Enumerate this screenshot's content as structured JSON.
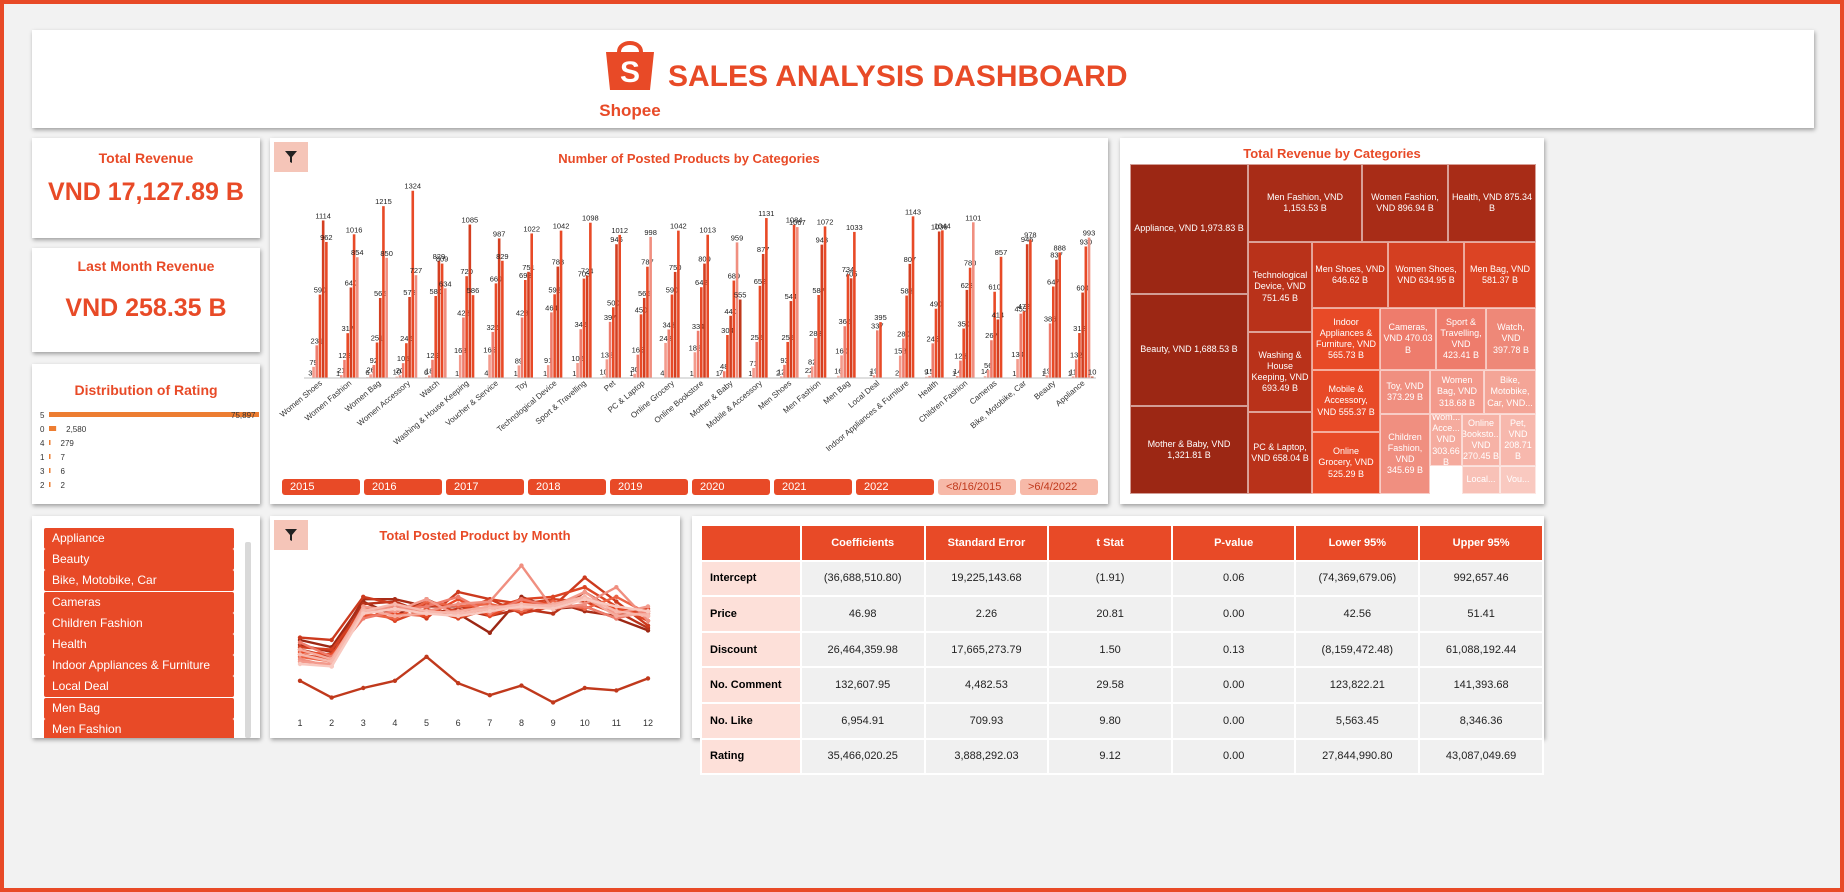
{
  "header": {
    "logo_text": "Shopee",
    "title": "SALES ANALYSIS DASHBOARD"
  },
  "kpis": {
    "total_revenue": {
      "label": "Total Revenue",
      "value": "VND 17,127.89 B"
    },
    "last_month_revenue": {
      "label": "Last Month Revenue",
      "value": "VND 258.35 B"
    }
  },
  "rating": {
    "title": "Distribution of Rating",
    "rows": [
      {
        "label": "5",
        "value": 75897,
        "display": "75,897"
      },
      {
        "label": "0",
        "value": 2580,
        "display": "2,580"
      },
      {
        "label": "4",
        "value": 279,
        "display": "279"
      },
      {
        "label": "1",
        "value": 7,
        "display": "7"
      },
      {
        "label": "3",
        "value": 6,
        "display": "6"
      },
      {
        "label": "2",
        "value": 2,
        "display": "2"
      }
    ]
  },
  "posted_chart": {
    "title": "Number of Posted Products by Categories",
    "year_buttons": [
      "2015",
      "2016",
      "2017",
      "2018",
      "2019",
      "2020",
      "2021",
      "2022"
    ],
    "date_buttons": [
      "<8/16/2015",
      ">6/4/2022"
    ],
    "chart_data": {
      "type": "bar",
      "categories": [
        "Women Shoes",
        "Women Fashion",
        "Women Bag",
        "Women Accessory",
        "Watch",
        "Washing & House Keeping",
        "Voucher & Service",
        "Toy",
        "Technological Device",
        "Sport & Travelling",
        "Pet",
        "PC & Laptop",
        "Online Grocery",
        "Online Bookstore",
        "Mother & Baby",
        "Mobile & Accessory",
        "Men Shoes",
        "Men Fashion",
        "Men Bag",
        "Local Deal",
        "Indoor Appliances & Furniture",
        "Health",
        "Children Fashion",
        "Cameras",
        "Bike, Motobike, Car",
        "Beauty",
        "Appliance"
      ],
      "values_per_category": [
        [
          3,
          79,
          231,
          590,
          1114,
          962
        ],
        [
          1,
          21,
          128,
          317,
          640,
          1016,
          854
        ],
        [
          6,
          26,
          92,
          251,
          566,
          1215,
          850
        ],
        [
          10,
          20,
          105,
          246,
          573,
          1324,
          727
        ],
        [
          6,
          18,
          129,
          580,
          829,
          809,
          634
        ],
        [
          1,
          163,
          428,
          720,
          1085,
          586
        ],
        [
          4,
          165,
          326,
          669,
          987,
          829
        ],
        [
          1,
          89,
          428,
          693,
          751,
          1022
        ],
        [
          1,
          91,
          464,
          592,
          788,
          1042
        ],
        [
          1,
          106,
          345,
          703,
          724,
          1098
        ],
        [
          10,
          132,
          397,
          500,
          946,
          1012
        ],
        [
          1,
          30,
          165,
          450,
          566,
          787,
          998
        ],
        [
          4,
          248,
          343,
          590,
          750,
          1042
        ],
        [
          1,
          182,
          334,
          642,
          809,
          1013
        ],
        [
          1,
          7,
          48,
          304,
          440,
          689,
          959,
          555
        ],
        [
          1,
          71,
          255,
          652,
          877,
          1131
        ],
        [
          2,
          12,
          93,
          255,
          544,
          1084,
          1067
        ],
        [
          22,
          82,
          283,
          587,
          943,
          1072
        ],
        [
          16,
          160,
          366,
          734,
          705,
          1033
        ],
        [
          1,
          19,
          337,
          395
        ],
        [
          2,
          158,
          280,
          583,
          807,
          1143
        ],
        [
          9,
          15,
          245,
          490,
          1036,
          1044
        ],
        [
          1,
          14,
          123,
          350,
          623,
          780,
          1101
        ],
        [
          14,
          56,
          267,
          610,
          414,
          857
        ],
        [
          1,
          134,
          455,
          472,
          946,
          978
        ],
        [
          1,
          19,
          386,
          647,
          837,
          888
        ],
        [
          1,
          11,
          132,
          318,
          604,
          930,
          993,
          10
        ]
      ],
      "ylim": [
        0,
        1400
      ]
    }
  },
  "treemap": {
    "title": "Total Revenue by Categories",
    "chart_data": {
      "type": "treemap",
      "items": [
        {
          "label": "Appliance, VND 1,973.83 B",
          "value": 1973.83,
          "color": "#9c2714"
        },
        {
          "label": "Beauty, VND 1,688.53 B",
          "value": 1688.53,
          "color": "#9c2714"
        },
        {
          "label": "Mother & Baby, VND 1,321.81 B",
          "value": 1321.81,
          "color": "#9c2714"
        },
        {
          "label": "Men Fashion, VND 1,153.53 B",
          "value": 1153.53,
          "color": "#a82c17"
        },
        {
          "label": "Women Fashion, VND 896.94 B",
          "value": 896.94,
          "color": "#a82c17"
        },
        {
          "label": "Health, VND 875.34 B",
          "value": 875.34,
          "color": "#a82c17"
        },
        {
          "label": "Technological Device, VND 751.45 B",
          "value": 751.45,
          "color": "#b9321a"
        },
        {
          "label": "Washing & House Keeping, VND 693.49 B",
          "value": 693.49,
          "color": "#b9321a"
        },
        {
          "label": "PC & Laptop, VND 658.04 B",
          "value": 658.04,
          "color": "#b9321a"
        },
        {
          "label": "Men Shoes, VND 646.62 B",
          "value": 646.62,
          "color": "#cc3a1e"
        },
        {
          "label": "Women Shoes, VND 634.95 B",
          "value": 634.95,
          "color": "#d43f21"
        },
        {
          "label": "Men Bag, VND 581.37 B",
          "value": 581.37,
          "color": "#dc4424"
        },
        {
          "label": "Indoor Appliances & Furniture, VND 565.73 B",
          "value": 565.73,
          "color": "#e84a27"
        },
        {
          "label": "Mobile & Accessory, VND 555.37 B",
          "value": 555.37,
          "color": "#e84a27"
        },
        {
          "label": "Online Grocery, VND 525.29 B",
          "value": 525.29,
          "color": "#e84a27"
        },
        {
          "label": "Cameras, VND 470.03 B",
          "value": 470.03,
          "color": "#ee7c6c"
        },
        {
          "label": "Sport & Travelling, VND 423.41 B",
          "value": 423.41,
          "color": "#ee7c6c"
        },
        {
          "label": "Watch, VND 397.78 B",
          "value": 397.78,
          "color": "#ee8878"
        },
        {
          "label": "Toy, VND 373.29 B",
          "value": 373.29,
          "color": "#f08f80"
        },
        {
          "label": "Children Fashion, VND 345.69 B",
          "value": 345.69,
          "color": "#f08f80"
        },
        {
          "label": "Women Bag, VND 318.68 B",
          "value": 318.68,
          "color": "#f39a8c"
        },
        {
          "label": "Bike, Motobike, Car, VND...",
          "value": 0,
          "color": "#f4a597"
        },
        {
          "label": "Wom... Acce... VND 303.66 B",
          "value": 303.66,
          "color": "#f5ab9e"
        },
        {
          "label": "Online Booksto... VND 270.45 B",
          "value": 270.45,
          "color": "#f6b2a6"
        },
        {
          "label": "Pet, VND 208.71 B",
          "value": 208.71,
          "color": "#f7b8ad"
        },
        {
          "label": "Local...",
          "value": 0,
          "color": "#f8c1b7"
        },
        {
          "label": "Vou...",
          "value": 0,
          "color": "#f9c9c0"
        }
      ]
    }
  },
  "slicer": {
    "items": [
      "Appliance",
      "Beauty",
      "Bike, Motobike, Car",
      "Cameras",
      "Children Fashion",
      "Health",
      "Indoor Appliances & Furniture",
      "Local Deal",
      "Men Bag",
      "Men Fashion"
    ]
  },
  "monthly_chart": {
    "title": "Total Posted Product by Month",
    "chart_data": {
      "type": "line",
      "x": [
        1,
        2,
        3,
        4,
        5,
        6,
        7,
        8,
        9,
        10,
        11,
        12
      ],
      "series": [
        {
          "values": [
            300,
            270,
            460,
            400,
            470,
            410,
            330,
            480,
            430,
            440,
            390,
            340
          ],
          "color": "#9c2714"
        },
        {
          "values": [
            280,
            250,
            470,
            470,
            440,
            440,
            430,
            440,
            460,
            420,
            400,
            420
          ],
          "color": "#a82c17"
        },
        {
          "values": [
            260,
            230,
            450,
            460,
            410,
            430,
            400,
            430,
            410,
            500,
            420,
            350
          ],
          "color": "#b9321a"
        },
        {
          "values": [
            310,
            300,
            480,
            450,
            390,
            500,
            470,
            410,
            440,
            560,
            460,
            360
          ],
          "color": "#cc3a1e"
        },
        {
          "values": [
            270,
            260,
            430,
            420,
            450,
            420,
            470,
            450,
            470,
            460,
            410,
            430
          ],
          "color": "#d43f21"
        },
        {
          "values": [
            240,
            220,
            440,
            380,
            430,
            390,
            430,
            470,
            480,
            520,
            440,
            380
          ],
          "color": "#dc4424"
        },
        {
          "values": [
            250,
            240,
            400,
            410,
            400,
            470,
            400,
            460,
            450,
            470,
            430,
            400
          ],
          "color": "#e84a27"
        },
        {
          "values": [
            230,
            210,
            410,
            390,
            460,
            440,
            450,
            420,
            460,
            430,
            480,
            410
          ],
          "color": "#ec6345"
        },
        {
          "values": [
            290,
            230,
            390,
            420,
            440,
            480,
            410,
            470,
            440,
            440,
            390,
            420
          ],
          "color": "#ee7c6c"
        },
        {
          "values": [
            220,
            190,
            420,
            440,
            420,
            450,
            460,
            610,
            430,
            450,
            520,
            380
          ],
          "color": "#f08f80"
        },
        {
          "values": [
            210,
            200,
            440,
            420,
            470,
            400,
            440,
            440,
            440,
            500,
            410,
            440
          ],
          "color": "#f39a8c"
        },
        {
          "values": [
            260,
            220,
            430,
            400,
            410,
            420,
            440,
            430,
            450,
            480,
            400,
            410
          ],
          "color": "#f5ab9e"
        },
        {
          "values": [
            240,
            210,
            420,
            450,
            420,
            410,
            430,
            450,
            440,
            480,
            420,
            400
          ],
          "color": "#f7b8ad"
        },
        {
          "values": [
            200,
            190,
            410,
            430,
            410,
            400,
            420,
            440,
            430,
            470,
            440,
            420
          ],
          "color": "#f9c9c0"
        },
        {
          "values": [
            130,
            60,
            100,
            130,
            230,
            120,
            70,
            110,
            40,
            100,
            90,
            140
          ],
          "color": "#c0391c"
        }
      ],
      "ylim": [
        0,
        650
      ]
    }
  },
  "regression": {
    "headers": [
      "",
      "Coefficients",
      "Standard Error",
      "t Stat",
      "P-value",
      "Lower 95%",
      "Upper 95%"
    ],
    "rows": [
      [
        "Intercept",
        "(36,688,510.80)",
        "19,225,143.68",
        "(1.91)",
        "0.06",
        "(74,369,679.06)",
        "992,657.46"
      ],
      [
        "Price",
        "46.98",
        "2.26",
        "20.81",
        "0.00",
        "42.56",
        "51.41"
      ],
      [
        "Discount",
        "26,464,359.98",
        "17,665,273.79",
        "1.50",
        "0.13",
        "(8,159,472.48)",
        "61,088,192.44"
      ],
      [
        "No. Comment",
        "132,607.95",
        "4,482.53",
        "29.58",
        "0.00",
        "123,822.21",
        "141,393.68"
      ],
      [
        "No. Like",
        "6,954.91",
        "709.93",
        "9.80",
        "0.00",
        "5,563.45",
        "8,346.36"
      ],
      [
        "Rating",
        "35,466,020.25",
        "3,888,292.03",
        "9.12",
        "0.00",
        "27,844,990.80",
        "43,087,049.69"
      ]
    ]
  }
}
